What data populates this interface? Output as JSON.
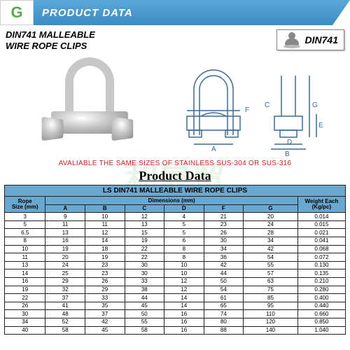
{
  "header": {
    "logo_letter": "G",
    "title": "PRODUCT DATA"
  },
  "watermark": "利晟贸",
  "product": {
    "title_line1": "DIN741 MALLEABLE",
    "title_line2": "WIRE ROPE CLIPS",
    "badge": "DIN741"
  },
  "diagram": {
    "labels": {
      "A": "A",
      "B": "B",
      "C": "C",
      "D": "D",
      "E": "E",
      "F": "F",
      "G": "G"
    }
  },
  "note": "AVALIABLE THE SAME SIZES OF STAINLESS SUS-304 OR SUS-316",
  "data_title": "Product Data",
  "table": {
    "caption": "LS DIN741 MALLEABLE WIRE ROPE CLIPS",
    "header_row1": {
      "rope": "Rope",
      "dims": "Dimensions (mm)",
      "weight": "Weight Each"
    },
    "header_row2": {
      "rope": "Size (mm)",
      "A": "A",
      "B": "B",
      "C": "C",
      "D": "D",
      "F": "F",
      "G": "G",
      "weight": "(Kg/pc)"
    },
    "rows": [
      [
        "3",
        "9",
        "10",
        "12",
        "4",
        "21",
        "20",
        "0.014"
      ],
      [
        "5",
        "11",
        "11",
        "13",
        "5",
        "23",
        "24",
        "0.015"
      ],
      [
        "6.5",
        "13",
        "12",
        "15",
        "5",
        "26",
        "28",
        "0.021"
      ],
      [
        "8",
        "16",
        "14",
        "19",
        "6",
        "30",
        "34",
        "0.041"
      ],
      [
        "10",
        "19",
        "18",
        "22",
        "8",
        "34",
        "42",
        "0.068"
      ],
      [
        "11",
        "20",
        "19",
        "22",
        "8",
        "36",
        "54",
        "0.072"
      ],
      [
        "13",
        "24",
        "23",
        "30",
        "10",
        "42",
        "55",
        "0.130"
      ],
      [
        "14",
        "25",
        "23",
        "30",
        "10",
        "44",
        "57",
        "0.135"
      ],
      [
        "16",
        "29",
        "26",
        "33",
        "12",
        "50",
        "63",
        "0.210"
      ],
      [
        "19",
        "32",
        "29",
        "38",
        "12",
        "54",
        "75",
        "0.280"
      ],
      [
        "22",
        "37",
        "33",
        "44",
        "14",
        "61",
        "85",
        "0.400"
      ],
      [
        "26",
        "41",
        "35",
        "45",
        "14",
        "65",
        "95",
        "0.440"
      ],
      [
        "30",
        "48",
        "37",
        "50",
        "16",
        "74",
        "110",
        "0.660"
      ],
      [
        "34",
        "52",
        "42",
        "55",
        "16",
        "80",
        "120",
        "0.850"
      ],
      [
        "40",
        "58",
        "45",
        "58",
        "16",
        "88",
        "140",
        "1.040"
      ]
    ]
  },
  "colors": {
    "header_grad_top": "#5ba8d8",
    "header_grad_bot": "#3a8ac5",
    "table_header": "#6aa8d0",
    "note_color": "#d62020",
    "logo_green": "#5aa84a"
  }
}
